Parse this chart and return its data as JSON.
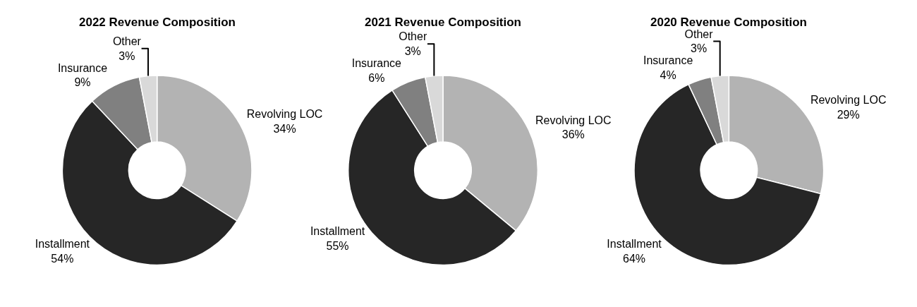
{
  "chart_data": [
    {
      "type": "donut",
      "title": "2022 Revenue Composition",
      "categories": [
        "Revolving LOC",
        "Installment",
        "Insurance",
        "Other"
      ],
      "values": [
        34,
        54,
        9,
        3
      ],
      "colors": [
        "#b3b3b3",
        "#262626",
        "#808080",
        "#d9d9d9"
      ],
      "value_labels": [
        "34%",
        "54%",
        "9%",
        "3%"
      ],
      "legend": false
    },
    {
      "type": "donut",
      "title": "2021 Revenue Composition",
      "categories": [
        "Revolving LOC",
        "Installment",
        "Insurance",
        "Other"
      ],
      "values": [
        36,
        55,
        6,
        3
      ],
      "colors": [
        "#b3b3b3",
        "#262626",
        "#808080",
        "#d9d9d9"
      ],
      "value_labels": [
        "36%",
        "55%",
        "6%",
        "3%"
      ],
      "legend": false
    },
    {
      "type": "donut",
      "title": "2020 Revenue Composition",
      "categories": [
        "Revolving LOC",
        "Installment",
        "Insurance",
        "Other"
      ],
      "values": [
        29,
        64,
        4,
        3
      ],
      "colors": [
        "#b3b3b3",
        "#262626",
        "#808080",
        "#d9d9d9"
      ],
      "value_labels": [
        "29%",
        "64%",
        "4%",
        "3%"
      ],
      "legend": false
    }
  ]
}
